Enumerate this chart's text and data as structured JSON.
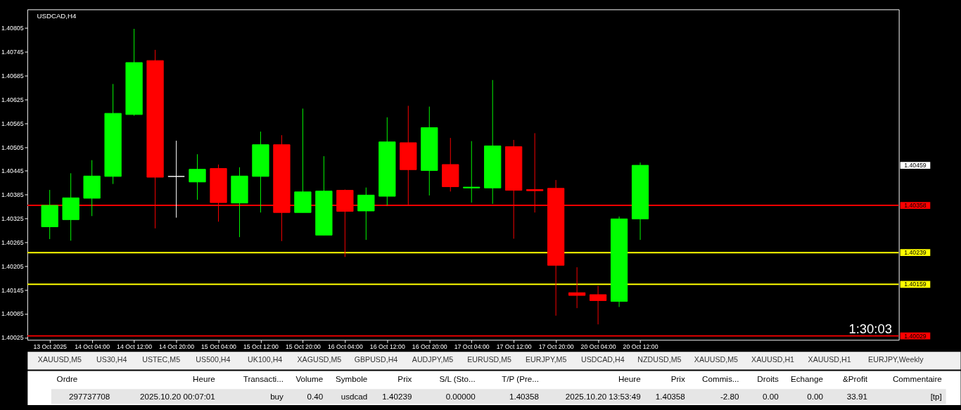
{
  "chart_data": [
    {
      "type": "candlestick",
      "title": "USDCAD,H4",
      "categories": [
        "13 Oct 2025",
        null,
        "14 Oct 04:00",
        null,
        "14 Oct 12:00",
        null,
        "14 Oct 20:00",
        null,
        "15 Oct 04:00",
        null,
        "15 Oct 12:00",
        null,
        "15 Oct 20:00",
        null,
        "16 Oct 04:00",
        null,
        "16 Oct 12:00",
        null,
        "16 Oct 20:00",
        null,
        "17 Oct 04:00",
        null,
        "17 Oct 12:00",
        null,
        "17 Oct 20:00",
        null,
        "20 Oct 04:00",
        null,
        "20 Oct 12:00"
      ],
      "ohlc": [
        [
          1.40304,
          1.40397,
          1.40273,
          1.40358
        ],
        [
          1.40322,
          1.40439,
          1.40269,
          1.40377
        ],
        [
          1.40376,
          1.40472,
          1.40331,
          1.40432
        ],
        [
          1.40431,
          1.40664,
          1.40412,
          1.4059
        ],
        [
          1.40587,
          1.40803,
          1.40584,
          1.40718
        ],
        [
          1.40723,
          1.4075,
          1.403,
          1.40429
        ],
        [
          1.40431,
          1.40521,
          1.40327,
          1.40431
        ],
        [
          1.40417,
          1.40487,
          1.40372,
          1.40449
        ],
        [
          1.40451,
          1.40461,
          1.40317,
          1.40365
        ],
        [
          1.40364,
          1.40454,
          1.40278,
          1.40432
        ],
        [
          1.40431,
          1.40544,
          1.4034,
          1.40511
        ],
        [
          1.40511,
          1.40535,
          1.40268,
          1.4034
        ],
        [
          1.4034,
          1.40602,
          1.4034,
          1.40392
        ],
        [
          1.40283,
          1.40482,
          1.40283,
          1.40394
        ],
        [
          1.40396,
          1.40398,
          1.40228,
          1.40343
        ],
        [
          1.40344,
          1.40403,
          1.40271,
          1.40384
        ],
        [
          1.40381,
          1.4058,
          1.40358,
          1.40518
        ],
        [
          1.40516,
          1.40609,
          1.4036,
          1.40448
        ],
        [
          1.40446,
          1.40607,
          1.40383,
          1.40554
        ],
        [
          1.40461,
          1.40528,
          1.40393,
          1.40405
        ],
        [
          1.40402,
          1.4052,
          1.40365,
          1.40404
        ],
        [
          1.40402,
          1.40674,
          1.40362,
          1.40508
        ],
        [
          1.40506,
          1.40523,
          1.40274,
          1.40396
        ],
        [
          1.40398,
          1.4054,
          1.4034,
          1.40395
        ],
        [
          1.40401,
          1.40422,
          1.4008,
          1.40207
        ],
        [
          1.40138,
          1.40202,
          1.40099,
          1.40131
        ],
        [
          1.40133,
          1.40155,
          1.40058,
          1.40118
        ],
        [
          1.40116,
          1.4033,
          1.40102,
          1.40324
        ],
        [
          1.40324,
          1.40466,
          1.40271,
          1.40459
        ]
      ],
      "colors": [
        "#00ff00",
        "#00ff00",
        "#00ff00",
        "#00ff00",
        "#00ff00",
        "#ff0000",
        "#ffffff",
        "#00ff00",
        "#ff0000",
        "#00ff00",
        "#00ff00",
        "#ff0000",
        "#00ff00",
        "#00ff00",
        "#ff0000",
        "#00ff00",
        "#00ff00",
        "#ff0000",
        "#00ff00",
        "#ff0000",
        "#00ff00",
        "#00ff00",
        "#ff0000",
        "#ff0000",
        "#ff0000",
        "#ff0000",
        "#ff0000",
        "#00ff00",
        "#00ff00"
      ],
      "ylim": [
        1.40019,
        1.40852
      ],
      "yticks": [
        1.40025,
        1.40085,
        1.40145,
        1.40205,
        1.40265,
        1.40325,
        1.40385,
        1.40445,
        1.40505,
        1.40565,
        1.40625,
        1.40685,
        1.40745,
        1.40805
      ],
      "ref_lines": [
        {
          "axis": "y",
          "value": 1.40358,
          "label": "1.40358",
          "color": "#ff0000"
        },
        {
          "axis": "y",
          "value": 1.40239,
          "label": "1.40239",
          "color": "#ffff00"
        },
        {
          "axis": "y",
          "value": 1.40159,
          "label": "1.40159",
          "color": "#ffff00"
        },
        {
          "axis": "y",
          "value": 1.40029,
          "label": "1.40029",
          "color": "#ff0000"
        }
      ],
      "annotations": [
        "1.40459",
        "1:30:03"
      ]
    },
    {
      "type": "other",
      "annotations": [
        "XAUUSD,M5",
        "US30,H4",
        "USTEC,M5",
        "US500,H4",
        "UK100,H4",
        "XAGUSD,M5",
        "GBPUSD,H4",
        "AUDJPY,M5",
        "EURUSD,M5",
        "EURJPY,M5",
        "USDCAD,H4",
        "NZDUSD,M5",
        "XAUUSD,M5",
        "XAUUSD,H1",
        "XAUUSD,H1",
        "EURJPY,Weekly"
      ]
    },
    {
      "type": "other",
      "categories": [
        "Ordre",
        "Heure",
        "Transacti...",
        "Volume",
        "Symbole",
        "Prix",
        "S/L (Sto...",
        "T/P (Pre...",
        "Heure",
        "Prix",
        "Commis...",
        "Droits",
        "Echange",
        "&Profit",
        "Commentaire"
      ],
      "annotations": [
        "297737708",
        "2025.10.20 00:07:01",
        "buy",
        "0.40",
        "usdcad",
        "1.40239",
        "0.00000",
        "1.40358",
        "2025.10.20 13:53:49",
        "1.40358",
        "-2.80",
        "0.00",
        "0.00",
        "33.91",
        "[tp]"
      ]
    }
  ]
}
